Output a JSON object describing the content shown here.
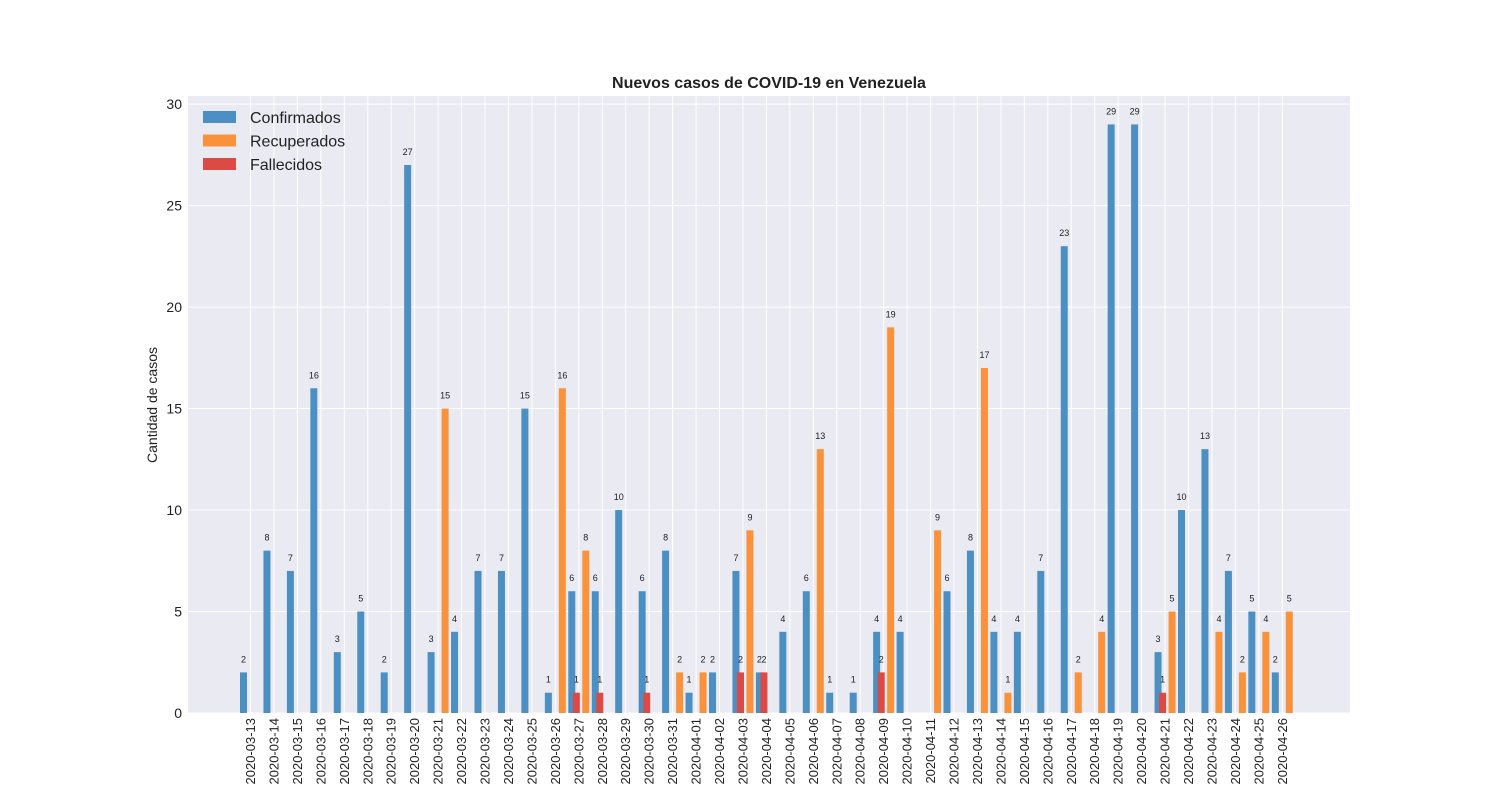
{
  "chart_data": {
    "type": "bar",
    "title": "Nuevos casos de COVID-19 en Venezuela",
    "xlabel": "",
    "ylabel": "Cantidad de casos",
    "ylim": [
      0,
      30.4
    ],
    "yticks": [
      0,
      5,
      10,
      15,
      20,
      25,
      30
    ],
    "grid": true,
    "legend": "top-left",
    "categories": [
      "2020-03-13",
      "2020-03-14",
      "2020-03-15",
      "2020-03-16",
      "2020-03-17",
      "2020-03-18",
      "2020-03-19",
      "2020-03-20",
      "2020-03-21",
      "2020-03-22",
      "2020-03-23",
      "2020-03-24",
      "2020-03-25",
      "2020-03-26",
      "2020-03-27",
      "2020-03-28",
      "2020-03-29",
      "2020-03-30",
      "2020-03-31",
      "2020-04-01",
      "2020-04-02",
      "2020-04-03",
      "2020-04-04",
      "2020-04-05",
      "2020-04-06",
      "2020-04-07",
      "2020-04-08",
      "2020-04-09",
      "2020-04-10",
      "2020-04-11",
      "2020-04-12",
      "2020-04-13",
      "2020-04-14",
      "2020-04-15",
      "2020-04-16",
      "2020-04-17",
      "2020-04-18",
      "2020-04-19",
      "2020-04-20",
      "2020-04-21",
      "2020-04-22",
      "2020-04-23",
      "2020-04-24",
      "2020-04-25",
      "2020-04-26"
    ],
    "series": [
      {
        "name": "Confirmados",
        "color": "#4c8fc3",
        "values": [
          2,
          8,
          7,
          16,
          3,
          5,
          2,
          27,
          3,
          4,
          7,
          7,
          15,
          1,
          6,
          6,
          10,
          6,
          8,
          1,
          2,
          7,
          2,
          4,
          6,
          1,
          1,
          4,
          4,
          0,
          6,
          8,
          4,
          4,
          7,
          23,
          0,
          29,
          29,
          3,
          10,
          13,
          7,
          5,
          2
        ]
      },
      {
        "name": "Recuperados",
        "color": "#f9923a",
        "values": [
          0,
          0,
          0,
          0,
          0,
          0,
          0,
          0,
          15,
          0,
          0,
          0,
          0,
          16,
          8,
          0,
          0,
          0,
          2,
          2,
          0,
          9,
          0,
          0,
          13,
          0,
          0,
          19,
          0,
          9,
          0,
          17,
          1,
          0,
          0,
          2,
          4,
          0,
          0,
          5,
          0,
          4,
          2,
          4,
          5
        ]
      },
      {
        "name": "Fallecidos",
        "color": "#db4a45",
        "values": [
          0,
          0,
          0,
          0,
          0,
          0,
          0,
          0,
          0,
          0,
          0,
          0,
          0,
          1,
          1,
          0,
          1,
          0,
          0,
          0,
          2,
          2,
          0,
          0,
          0,
          0,
          2,
          0,
          0,
          0,
          0,
          0,
          0,
          0,
          0,
          0,
          0,
          0,
          1,
          0,
          0,
          0,
          0,
          0,
          0
        ]
      }
    ]
  }
}
